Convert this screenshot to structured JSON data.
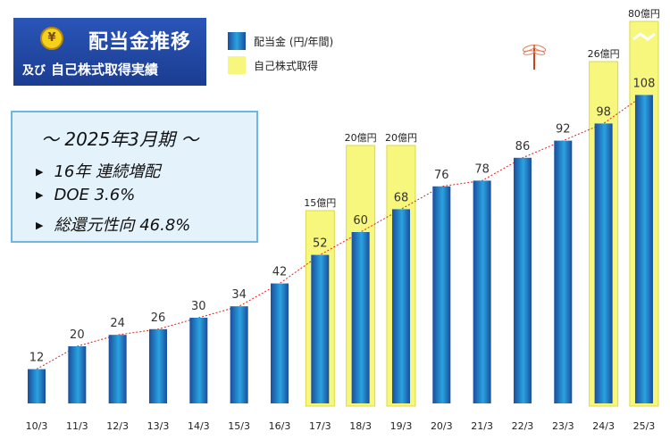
{
  "header": {
    "title": "配当金推移",
    "subtitle_lead": "及び",
    "subtitle": "自己株式取得実績",
    "icon": "yen-coin-icon"
  },
  "legend": {
    "dividend": "配当金 (円/年間)",
    "buyback": "自己株式取得"
  },
  "info": {
    "heading": "～ 2025年3月期 ～",
    "bullets": [
      "16年 連続増配",
      "DOE 3.6%",
      "総還元性向 46.8%"
    ]
  },
  "colors": {
    "bar_dark": "#1a4d9c",
    "bar_light": "#2aa3e0",
    "buyback_fill": "#f7f77e",
    "buyback_border": "#d9d94a",
    "trend": "#e02020",
    "title_bg": "#1b3d91",
    "info_bg": "#e4f2fb",
    "info_border": "#6fb6e0"
  },
  "chart_data": {
    "type": "bar",
    "categories": [
      "10/3",
      "11/3",
      "12/3",
      "13/3",
      "14/3",
      "15/3",
      "16/3",
      "17/3",
      "18/3",
      "19/3",
      "20/3",
      "21/3",
      "22/3",
      "23/3",
      "24/3",
      "25/3"
    ],
    "series": [
      {
        "name": "配当金 (円/年間)",
        "values": [
          12,
          20,
          24,
          26,
          30,
          34,
          42,
          52,
          60,
          68,
          76,
          78,
          86,
          92,
          98,
          108
        ]
      }
    ],
    "buyback": [
      {
        "category": "17/3",
        "label": "15億円",
        "value": 15
      },
      {
        "category": "18/3",
        "label": "20億円",
        "value": 20
      },
      {
        "category": "19/3",
        "label": "20億円",
        "value": 20
      },
      {
        "category": "24/3",
        "label": "26億円",
        "value": 26
      },
      {
        "category": "25/3",
        "label": "80億円",
        "value": 80
      }
    ],
    "trendline": "dotted"
  }
}
